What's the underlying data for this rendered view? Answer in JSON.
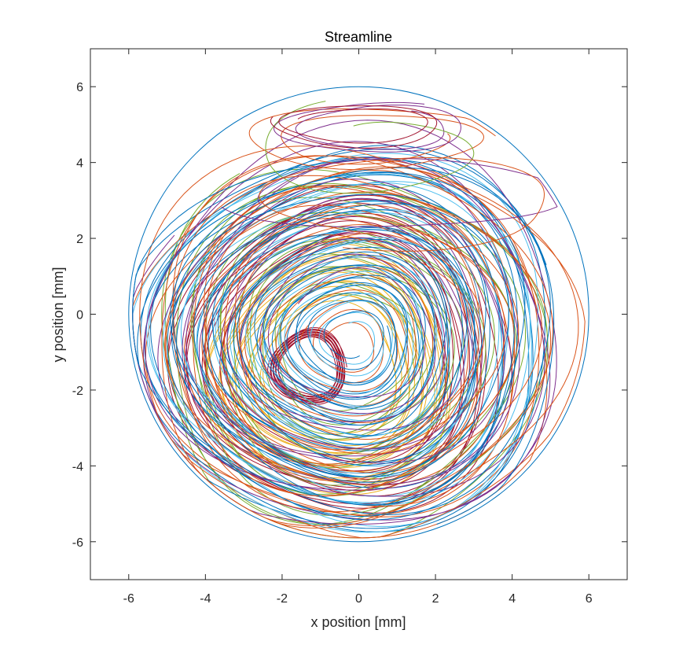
{
  "chart_data": {
    "type": "line",
    "title": "Streamline",
    "xlabel": "x position [mm]",
    "ylabel": "y position [mm]",
    "xlim": [
      -7,
      7
    ],
    "ylim": [
      -7,
      7
    ],
    "xticks": [
      -6,
      -4,
      -2,
      0,
      2,
      4,
      6
    ],
    "yticks": [
      -6,
      -4,
      -2,
      0,
      2,
      4,
      6
    ],
    "grid": false,
    "boundary": {
      "shape": "circle",
      "cx": 0,
      "cy": 0,
      "r": 6,
      "color": "#0072BD"
    },
    "colors": [
      "#0072BD",
      "#D95319",
      "#EDB120",
      "#7E2F8E",
      "#77AC30",
      "#4DBEEE",
      "#A2142F"
    ],
    "series": [
      {
        "color": "#A2142F",
        "center": [
          -1.3,
          -1.4
        ],
        "rx": 1.0,
        "ry": 1.0,
        "turns": 12,
        "decay": 0.25,
        "phase": 0.0
      },
      {
        "color": "#EDB120",
        "center": [
          -0.7,
          -1.5
        ],
        "rx": 3.3,
        "ry": 3.3,
        "turns": 14,
        "decay": 0.5,
        "phase": 0.6
      },
      {
        "color": "#A2142F",
        "center": [
          -0.5,
          -1.1
        ],
        "rx": 4.3,
        "ry": 4.3,
        "turns": 10,
        "decay": 0.35,
        "phase": 1.2
      },
      {
        "color": "#77AC30",
        "center": [
          -0.3,
          -0.9
        ],
        "rx": 5.2,
        "ry": 5.0,
        "turns": 14,
        "decay": 0.7,
        "phase": 2.1
      },
      {
        "color": "#D95319",
        "center": [
          -0.3,
          -0.8
        ],
        "rx": 5.6,
        "ry": 5.1,
        "turns": 16,
        "decay": 0.9,
        "phase": 3.0
      },
      {
        "color": "#0072BD",
        "center": [
          -0.3,
          -0.7
        ],
        "rx": 5.7,
        "ry": 5.2,
        "turns": 18,
        "decay": 0.8,
        "phase": 0.4
      },
      {
        "color": "#4DBEEE",
        "center": [
          -0.2,
          -0.7
        ],
        "rx": 5.5,
        "ry": 5.0,
        "turns": 18,
        "decay": 0.9,
        "phase": 1.7
      },
      {
        "color": "#7E2F8E",
        "center": [
          -0.2,
          -0.5
        ],
        "rx": 5.8,
        "ry": 5.4,
        "turns": 12,
        "decay": 0.7,
        "phase": 2.6
      },
      {
        "color": "#D95319",
        "center": [
          -0.2,
          -0.6
        ],
        "rx": 5.85,
        "ry": 5.3,
        "turns": 10,
        "decay": 0.5,
        "phase": 4.0
      },
      {
        "color": "#0072BD",
        "center": [
          -0.2,
          -0.6
        ],
        "rx": 5.6,
        "ry": 5.1,
        "turns": 14,
        "decay": 0.9,
        "phase": 5.1
      }
    ],
    "top_loops": [
      {
        "color": "#D95319",
        "center": [
          0.3,
          4.6
        ],
        "rx": 3.4,
        "ry": 0.9,
        "turns": 2,
        "decay": 0.4,
        "phase": 0.3
      },
      {
        "color": "#7E2F8E",
        "center": [
          0.5,
          4.9
        ],
        "rx": 2.6,
        "ry": 0.7,
        "turns": 2,
        "decay": 0.3,
        "phase": 1.1
      },
      {
        "color": "#77AC30",
        "center": [
          0.6,
          4.3
        ],
        "rx": 3.4,
        "ry": 1.4,
        "turns": 1,
        "decay": 0.5,
        "phase": 2.0
      },
      {
        "color": "#A2142F",
        "center": [
          0.0,
          5.0
        ],
        "rx": 2.3,
        "ry": 0.6,
        "turns": 2,
        "decay": 0.3,
        "phase": 2.8
      },
      {
        "color": "#7E2F8E",
        "center": [
          1.0,
          3.2
        ],
        "rx": 4.6,
        "ry": 1.0,
        "turns": 1,
        "decay": 0.2,
        "phase": 3.5
      },
      {
        "color": "#D95319",
        "center": [
          1.0,
          3.0
        ],
        "rx": 4.6,
        "ry": 1.3,
        "turns": 1,
        "decay": 0.3,
        "phase": 4.4
      }
    ]
  }
}
